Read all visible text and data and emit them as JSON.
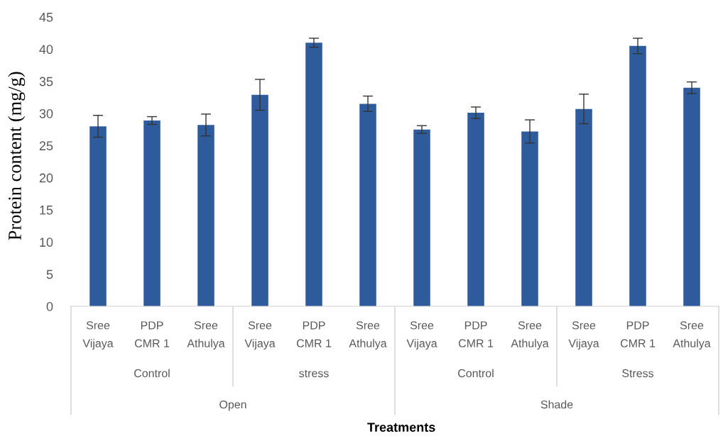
{
  "chart_data": {
    "type": "bar",
    "ylabel": "Protein content (mg/g)",
    "categories": [
      "Sree Vijaya",
      "PDP CMR 1",
      "Sree Athulya",
      "Sree Vijaya",
      "PDP CMR 1",
      "Sree Athulya",
      "Sree Vijaya",
      "PDP CMR 1",
      "Sree Athulya",
      "Sree Vijaya",
      "PDP CMR 1",
      "Sree Athulya"
    ],
    "values": [
      28.0,
      28.9,
      28.2,
      32.9,
      41.0,
      31.5,
      27.5,
      30.1,
      27.2,
      30.7,
      40.5,
      34.0
    ],
    "errors": [
      1.7,
      0.6,
      1.7,
      2.4,
      0.7,
      1.2,
      0.6,
      0.9,
      1.8,
      2.3,
      1.2,
      0.9
    ],
    "color": "#2e5b9c",
    "ylim": [
      0,
      45
    ],
    "yticks": [
      0,
      5,
      10,
      15,
      20,
      25,
      30,
      35,
      40,
      45
    ],
    "annotations": [
      "Control",
      "stress",
      "Control",
      "Stress",
      "Open",
      "Shade",
      "Treatments"
    ]
  }
}
